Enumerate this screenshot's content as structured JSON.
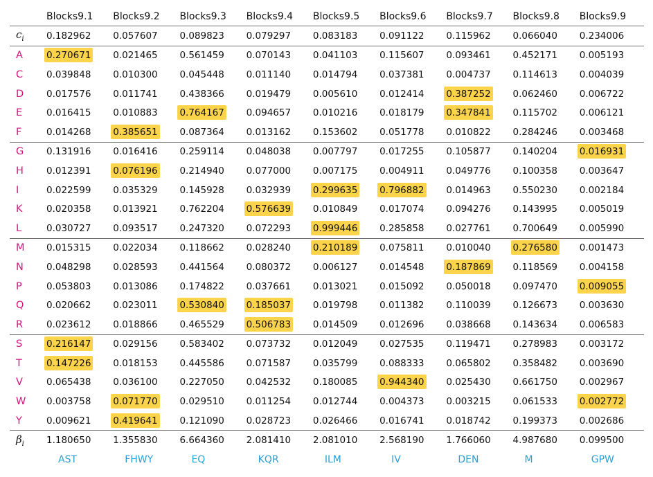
{
  "columns": [
    "Blocks9.1",
    "Blocks9.2",
    "Blocks9.3",
    "Blocks9.4",
    "Blocks9.5",
    "Blocks9.6",
    "Blocks9.7",
    "Blocks9.8",
    "Blocks9.9"
  ],
  "c_row": {
    "label": "c",
    "sub": "i",
    "values": [
      "0.182962",
      "0.057607",
      "0.089823",
      "0.079297",
      "0.083183",
      "0.091122",
      "0.115962",
      "0.066040",
      "0.234006"
    ]
  },
  "rows": [
    {
      "label": "A",
      "values": [
        "0.270671",
        "0.021465",
        "0.561459",
        "0.070143",
        "0.041103",
        "0.115607",
        "0.093461",
        "0.452171",
        "0.005193"
      ],
      "highlight": [
        0
      ]
    },
    {
      "label": "C",
      "values": [
        "0.039848",
        "0.010300",
        "0.045448",
        "0.011140",
        "0.014794",
        "0.037381",
        "0.004737",
        "0.114613",
        "0.004039"
      ],
      "highlight": []
    },
    {
      "label": "D",
      "values": [
        "0.017576",
        "0.011741",
        "0.438366",
        "0.019479",
        "0.005610",
        "0.012414",
        "0.387252",
        "0.062460",
        "0.006722"
      ],
      "highlight": [
        6
      ]
    },
    {
      "label": "E",
      "values": [
        "0.016415",
        "0.010883",
        "0.764167",
        "0.094657",
        "0.010216",
        "0.018179",
        "0.347841",
        "0.115702",
        "0.006121"
      ],
      "highlight": [
        2,
        6
      ]
    },
    {
      "label": "F",
      "values": [
        "0.014268",
        "0.385651",
        "0.087364",
        "0.013162",
        "0.153602",
        "0.051778",
        "0.010822",
        "0.284246",
        "0.003468"
      ],
      "highlight": [
        1
      ]
    },
    {
      "label": "G",
      "values": [
        "0.131916",
        "0.016416",
        "0.259114",
        "0.048038",
        "0.007797",
        "0.017255",
        "0.105877",
        "0.140204",
        "0.016931"
      ],
      "highlight": [
        8
      ]
    },
    {
      "label": "H",
      "values": [
        "0.012391",
        "0.076196",
        "0.214940",
        "0.077000",
        "0.007175",
        "0.004911",
        "0.049776",
        "0.100358",
        "0.003647"
      ],
      "highlight": [
        1
      ]
    },
    {
      "label": "I",
      "values": [
        "0.022599",
        "0.035329",
        "0.145928",
        "0.032939",
        "0.299635",
        "0.796882",
        "0.014963",
        "0.550230",
        "0.002184"
      ],
      "highlight": [
        4,
        5
      ]
    },
    {
      "label": "K",
      "values": [
        "0.020358",
        "0.013921",
        "0.762204",
        "0.576639",
        "0.010849",
        "0.017074",
        "0.094276",
        "0.143995",
        "0.005019"
      ],
      "highlight": [
        3
      ]
    },
    {
      "label": "L",
      "values": [
        "0.030727",
        "0.093517",
        "0.247320",
        "0.072293",
        "0.999446",
        "0.285858",
        "0.027761",
        "0.700649",
        "0.005990"
      ],
      "highlight": [
        4
      ]
    },
    {
      "label": "M",
      "values": [
        "0.015315",
        "0.022034",
        "0.118662",
        "0.028240",
        "0.210189",
        "0.075811",
        "0.010040",
        "0.276580",
        "0.001473"
      ],
      "highlight": [
        4,
        7
      ]
    },
    {
      "label": "N",
      "values": [
        "0.048298",
        "0.028593",
        "0.441564",
        "0.080372",
        "0.006127",
        "0.014548",
        "0.187869",
        "0.118569",
        "0.004158"
      ],
      "highlight": [
        6
      ]
    },
    {
      "label": "P",
      "values": [
        "0.053803",
        "0.013086",
        "0.174822",
        "0.037661",
        "0.013021",
        "0.015092",
        "0.050018",
        "0.097470",
        "0.009055"
      ],
      "highlight": [
        8
      ]
    },
    {
      "label": "Q",
      "values": [
        "0.020662",
        "0.023011",
        "0.530840",
        "0.185037",
        "0.019798",
        "0.011382",
        "0.110039",
        "0.126673",
        "0.003630"
      ],
      "highlight": [
        2,
        3
      ]
    },
    {
      "label": "R",
      "values": [
        "0.023612",
        "0.018866",
        "0.465529",
        "0.506783",
        "0.014509",
        "0.012696",
        "0.038668",
        "0.143634",
        "0.006583"
      ],
      "highlight": [
        3
      ]
    },
    {
      "label": "S",
      "values": [
        "0.216147",
        "0.029156",
        "0.583402",
        "0.073732",
        "0.012049",
        "0.027535",
        "0.119471",
        "0.278983",
        "0.003172"
      ],
      "highlight": [
        0
      ]
    },
    {
      "label": "T",
      "values": [
        "0.147226",
        "0.018153",
        "0.445586",
        "0.071587",
        "0.035799",
        "0.088333",
        "0.065802",
        "0.358482",
        "0.003690"
      ],
      "highlight": [
        0
      ]
    },
    {
      "label": "V",
      "values": [
        "0.065438",
        "0.036100",
        "0.227050",
        "0.042532",
        "0.180085",
        "0.944340",
        "0.025430",
        "0.661750",
        "0.002967"
      ],
      "highlight": [
        5
      ]
    },
    {
      "label": "W",
      "values": [
        "0.003758",
        "0.071770",
        "0.029510",
        "0.011254",
        "0.012744",
        "0.004373",
        "0.003215",
        "0.061533",
        "0.002772"
      ],
      "highlight": [
        1,
        8
      ]
    },
    {
      "label": "Y",
      "values": [
        "0.009621",
        "0.419641",
        "0.121090",
        "0.028723",
        "0.026466",
        "0.016741",
        "0.018742",
        "0.199373",
        "0.002686"
      ],
      "highlight": [
        1
      ]
    }
  ],
  "beta_row": {
    "label": "β",
    "sub": "i",
    "values": [
      "1.180650",
      "1.355830",
      "6.664360",
      "2.081410",
      "2.081010",
      "2.568190",
      "1.766060",
      "4.987680",
      "0.099500"
    ]
  },
  "footer": [
    "AST",
    "FHWY",
    "EQ",
    "KQR",
    "ILM",
    "IV",
    "DEN",
    "M",
    "GPW"
  ],
  "colors": {
    "highlight": "#fcd44c",
    "row_label": "#d4147e",
    "footer": "#2b9fd2",
    "rule": "#6f6f6f"
  }
}
